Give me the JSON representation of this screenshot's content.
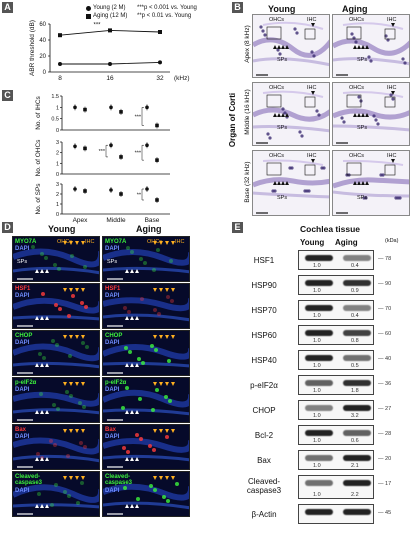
{
  "panels": {
    "A": "A",
    "B": "B",
    "C": "C",
    "D": "D",
    "E": "E"
  },
  "panelA": {
    "legend": [
      {
        "label": "Young (2 M)",
        "note": "***p < 0.001 vs. Young",
        "marker": "circle"
      },
      {
        "label": "Aging (12 M)",
        "note": "**p < 0.01 vs. Young",
        "marker": "square"
      }
    ],
    "sig": "***",
    "xunit": "(kHz)"
  },
  "chart_data": [
    {
      "type": "line",
      "x": [
        8,
        16,
        32
      ],
      "series": [
        {
          "name": "Young (2 M)",
          "values": [
            10,
            10,
            12
          ]
        },
        {
          "name": "Aging (12 M)",
          "values": [
            46,
            52,
            50
          ]
        }
      ],
      "xlabel": "(kHz)",
      "ylabel": "ABR threshold (dB)",
      "ylim": [
        0,
        60
      ],
      "yticks": [
        0,
        20,
        40,
        60
      ]
    },
    {
      "type": "scatter",
      "categories": [
        "Apex",
        "Middle",
        "Base"
      ],
      "series": [
        {
          "name": "Young (2 M)",
          "values": [
            1.0,
            1.0,
            1.0
          ]
        },
        {
          "name": "Aging (12 M)",
          "values": [
            0.9,
            0.8,
            0.2
          ]
        }
      ],
      "ylabel": "No. of IHCs",
      "ylim": [
        0,
        1.5
      ],
      "yticks": [
        0,
        0.5,
        1.0,
        1.5
      ],
      "annotations": [
        "***"
      ]
    },
    {
      "type": "scatter",
      "categories": [
        "Apex",
        "Middle",
        "Base"
      ],
      "series": [
        {
          "name": "Young (2 M)",
          "values": [
            2.6,
            2.7,
            2.7
          ]
        },
        {
          "name": "Aging (12 M)",
          "values": [
            2.4,
            1.6,
            1.3
          ]
        }
      ],
      "ylabel": "No. of OHCs",
      "ylim": [
        0,
        3
      ],
      "yticks": [
        0,
        1,
        2,
        3
      ],
      "annotations": [
        "***",
        "***"
      ]
    },
    {
      "type": "scatter",
      "categories": [
        "Apex",
        "Middle",
        "Base"
      ],
      "series": [
        {
          "name": "Young (2 M)",
          "values": [
            2.5,
            2.4,
            2.5
          ]
        },
        {
          "name": "Aging (12 M)",
          "values": [
            2.3,
            2.0,
            1.4
          ]
        }
      ],
      "ylabel": "No. of SPs",
      "ylim": [
        0,
        3
      ],
      "yticks": [
        0,
        1,
        2,
        3
      ],
      "annotations": [
        "**"
      ]
    }
  ],
  "panelB": {
    "col_young": "Young",
    "col_aging": "Aging",
    "side_label": "Organ of Corti",
    "rows": [
      "Apex (8 kHz)",
      "Middle (16 kHz)",
      "Base (32 kHz)"
    ],
    "tags": {
      "ohcs": "OHCs",
      "ihc": "IHC",
      "sps": "SPs"
    }
  },
  "panelD": {
    "col_young": "Young",
    "col_aging": "Aging",
    "rows": [
      {
        "marker": "MYO7A",
        "extra": "DAPI",
        "color": "#3cf23c"
      },
      {
        "marker": "HSF1",
        "extra": "DAPI",
        "color": "#ff3b3b"
      },
      {
        "marker": "CHOP",
        "extra": "DAPI",
        "color": "#3cf23c"
      },
      {
        "marker": "p-eIF2α",
        "extra": "DAPI",
        "color": "#3cf23c"
      },
      {
        "marker": "Bax",
        "extra": "DAPI",
        "color": "#ff3b3b"
      },
      {
        "marker": "Cleaved-caspase3",
        "extra": "DAPI",
        "color": "#3cf23c"
      }
    ],
    "tags": {
      "ohcs": "OHCs",
      "ihc": "IHC",
      "sps": "SPs"
    }
  },
  "panelE": {
    "title": "Cochlea tissue",
    "col_young": "Young",
    "col_aging": "Aging",
    "unit": "(kDa)",
    "blots": [
      {
        "name": "HSF1",
        "young": "1.0",
        "aging": "0.4",
        "kda": "78",
        "ya": 1.0,
        "aa": 0.4
      },
      {
        "name": "HSP90",
        "young": "1.0",
        "aging": "0.9",
        "kda": "90",
        "ya": 1.0,
        "aa": 0.9
      },
      {
        "name": "HSP70",
        "young": "1.0",
        "aging": "0.4",
        "kda": "70",
        "ya": 1.0,
        "aa": 0.4
      },
      {
        "name": "HSP60",
        "young": "1.0",
        "aging": "0.8",
        "kda": "60",
        "ya": 1.0,
        "aa": 0.8
      },
      {
        "name": "HSP40",
        "young": "1.0",
        "aging": "0.5",
        "kda": "40",
        "ya": 1.0,
        "aa": 0.5
      },
      {
        "name": "p-eIF2α",
        "young": "1.0",
        "aging": "1.8",
        "kda": "36",
        "ya": 0.6,
        "aa": 0.9
      },
      {
        "name": "CHOP",
        "young": "1.0",
        "aging": "3.2",
        "kda": "27",
        "ya": 0.4,
        "aa": 1.0
      },
      {
        "name": "Bcl-2",
        "young": "1.0",
        "aging": "0.6",
        "kda": "28",
        "ya": 1.0,
        "aa": 0.6
      },
      {
        "name": "Bax",
        "young": "1.0",
        "aging": "2.1",
        "kda": "20",
        "ya": 0.5,
        "aa": 1.0
      },
      {
        "name": "Cleaved-caspase3",
        "young": "1.0",
        "aging": "2.2",
        "kda": "17",
        "ya": 0.5,
        "aa": 1.0
      },
      {
        "name": "β-Actin",
        "young": "",
        "aging": "",
        "kda": "45",
        "ya": 1.0,
        "aa": 1.0
      }
    ]
  }
}
